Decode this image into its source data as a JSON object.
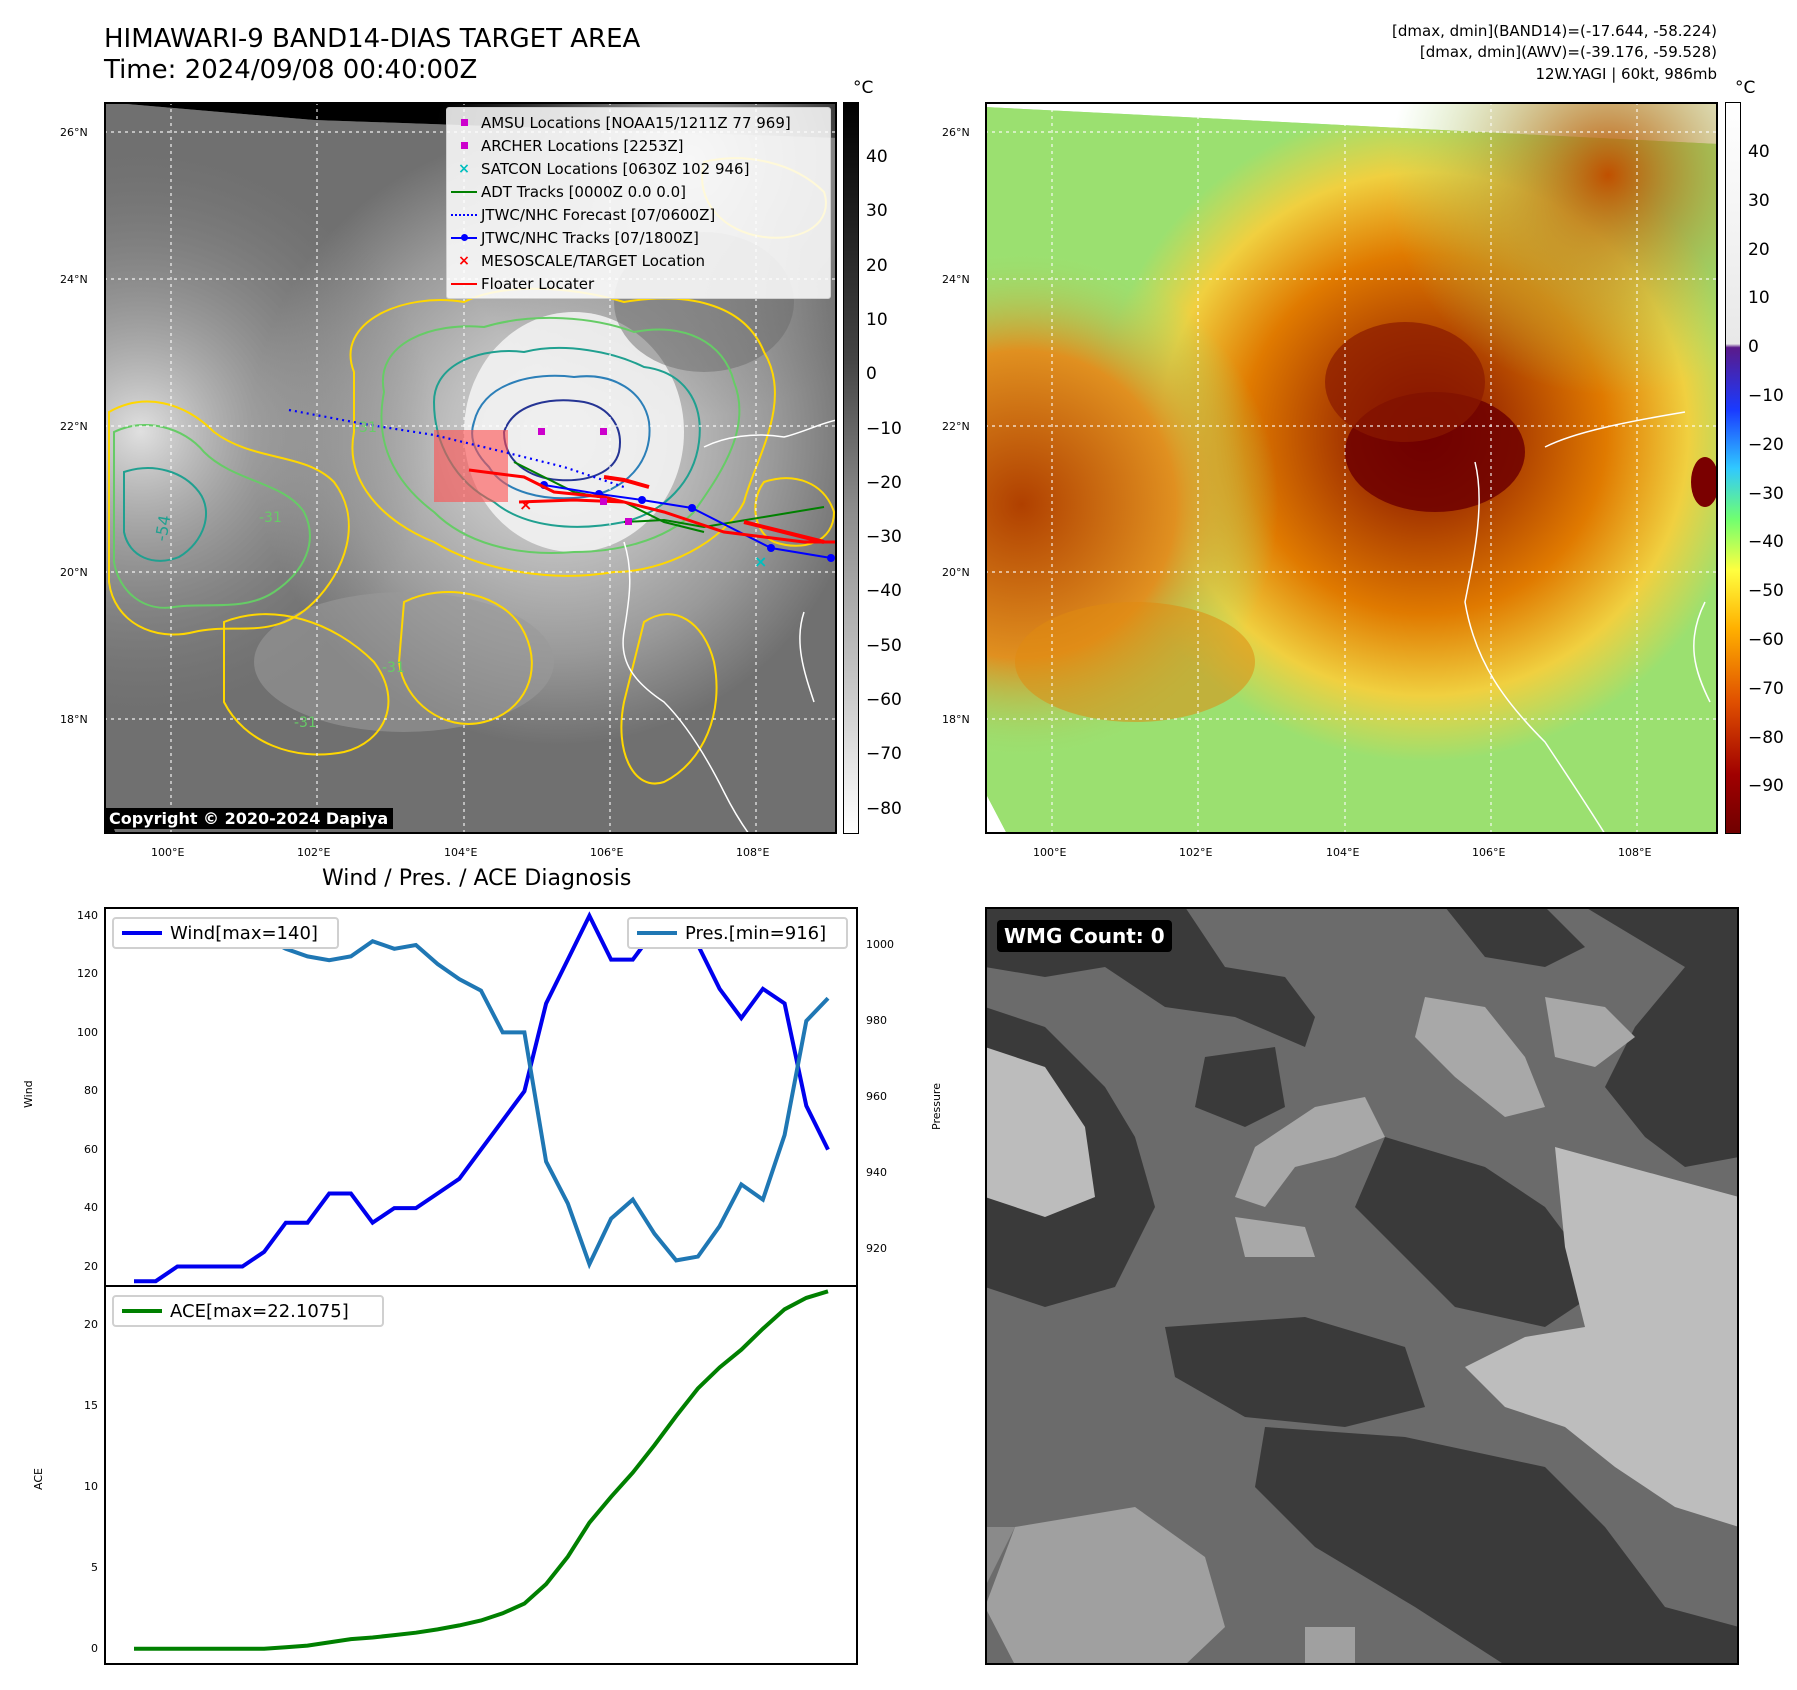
{
  "header": {
    "title_line1": "HIMAWARI-9 BAND14-DIAS TARGET AREA",
    "title_line2": "Time: 2024/09/08 00:40:00Z",
    "info_line1": "[dmax, dmin](BAND14)=(-17.644, -58.224)",
    "info_line2": "[dmax, dmin](AWV)=(-39.176, -59.528)",
    "info_line3": "12W.YAGI | 60kt, 986mb"
  },
  "map_axes": {
    "lon_ticks": [
      "100°E",
      "102°E",
      "104°E",
      "106°E",
      "108°E"
    ],
    "lat_ticks": [
      "26°N",
      "24°N",
      "22°N",
      "20°N",
      "18°N"
    ]
  },
  "ir_panel": {
    "colorbar_unit": "°C",
    "colorbar_ticks": [
      "40",
      "30",
      "20",
      "10",
      "0",
      "−10",
      "−20",
      "−30",
      "−40",
      "−50",
      "−60",
      "−70",
      "−80"
    ],
    "contour_labels": [
      "-54",
      "-31",
      "-31",
      "-31",
      "-31"
    ],
    "copyright": "Copyright © 2020-2024 Dapiya",
    "legend": [
      {
        "label": "AMSU Locations [NOAA15/1211Z 77 969]",
        "symbol": "square",
        "color": "#cc00cc"
      },
      {
        "label": "ARCHER Locations [2253Z]",
        "symbol": "square",
        "color": "#cc00cc"
      },
      {
        "label": "SATCON Locations [0630Z 102 946]",
        "symbol": "x",
        "color": "#00bfbf"
      },
      {
        "label": "ADT Tracks [0000Z 0.0 0.0]",
        "symbol": "line",
        "color": "#008000"
      },
      {
        "label": "JTWC/NHC Forecast [07/0600Z]",
        "symbol": "dotted",
        "color": "#0000ff"
      },
      {
        "label": "JTWC/NHC Tracks [07/1800Z]",
        "symbol": "line-dot",
        "color": "#0000ff"
      },
      {
        "label": "MESOSCALE/TARGET Location",
        "symbol": "x",
        "color": "#ff0000"
      },
      {
        "label": "Floater Locater",
        "symbol": "line",
        "color": "#ff0000"
      }
    ]
  },
  "awv_panel": {
    "colorbar_unit": "°C",
    "colorbar_ticks": [
      "40",
      "30",
      "20",
      "10",
      "0",
      "−10",
      "−20",
      "−30",
      "−40",
      "−50",
      "−60",
      "−70",
      "−80",
      "−90"
    ]
  },
  "diagnosis": {
    "title": "Wind / Pres. / ACE Diagnosis",
    "wind_ylabel": "Wind",
    "pres_ylabel": "Pressure",
    "ace_ylabel": "ACE",
    "wind_ticks": [
      "140",
      "120",
      "100",
      "80",
      "60",
      "40",
      "20"
    ],
    "pres_ticks": [
      "1000",
      "980",
      "960",
      "940",
      "920"
    ],
    "ace_ticks": [
      "20",
      "15",
      "10",
      "5",
      "0"
    ]
  },
  "wmg_panel": {
    "label": "WMG Count: 0"
  },
  "colors": {
    "wind": "#0000ee",
    "pressure": "#1f77b4",
    "ace": "#008000"
  },
  "chart_data": [
    {
      "type": "line",
      "title": "Wind / Pres. / ACE Diagnosis",
      "xlabel": "",
      "ylabel": "Wind",
      "ylim": [
        13,
        143
      ],
      "x": [
        0,
        1,
        2,
        3,
        4,
        5,
        6,
        7,
        8,
        9,
        10,
        11,
        12,
        13,
        14,
        15,
        16,
        17,
        18,
        19,
        20,
        21,
        22,
        23,
        24,
        25,
        26,
        27,
        28,
        29,
        30,
        31,
        32
      ],
      "series": [
        {
          "name": "Wind[max=140]",
          "values": [
            15,
            15,
            20,
            20,
            20,
            20,
            25,
            35,
            35,
            45,
            45,
            35,
            40,
            40,
            45,
            50,
            60,
            70,
            80,
            110,
            125,
            140,
            125,
            125,
            135,
            135,
            130,
            115,
            105,
            115,
            110,
            75,
            60
          ]
        }
      ]
    },
    {
      "type": "line",
      "ylabel": "Pressure",
      "ylim": [
        910,
        1010
      ],
      "x": [
        0,
        1,
        2,
        3,
        4,
        5,
        6,
        7,
        8,
        9,
        10,
        11,
        12,
        13,
        14,
        15,
        16,
        17,
        18,
        19,
        20,
        21,
        22,
        23,
        24,
        25,
        26,
        27,
        28,
        29,
        30,
        31,
        32
      ],
      "series": [
        {
          "name": "Pres.[min=916]",
          "values": [
            1006,
            1006,
            1005,
            1005,
            1004,
            1003,
            1002,
            999,
            997,
            996,
            997,
            1001,
            999,
            1000,
            995,
            991,
            988,
            977,
            977,
            943,
            932,
            916,
            928,
            933,
            924,
            917,
            918,
            926,
            937,
            933,
            950,
            980,
            986
          ]
        }
      ]
    },
    {
      "type": "line",
      "ylabel": "ACE",
      "ylim": [
        -1,
        22.5
      ],
      "x": [
        0,
        1,
        2,
        3,
        4,
        5,
        6,
        7,
        8,
        9,
        10,
        11,
        12,
        13,
        14,
        15,
        16,
        17,
        18,
        19,
        20,
        21,
        22,
        23,
        24,
        25,
        26,
        27,
        28,
        29,
        30,
        31,
        32
      ],
      "series": [
        {
          "name": "ACE[max=22.1075]",
          "values": [
            0,
            0,
            0,
            0,
            0,
            0,
            0,
            0.1,
            0.2,
            0.4,
            0.6,
            0.7,
            0.85,
            1.0,
            1.2,
            1.45,
            1.75,
            2.2,
            2.8,
            4.0,
            5.7,
            7.8,
            9.4,
            10.9,
            12.6,
            14.4,
            16.1,
            17.4,
            18.5,
            19.8,
            21.0,
            21.7,
            22.1075
          ]
        }
      ]
    }
  ]
}
